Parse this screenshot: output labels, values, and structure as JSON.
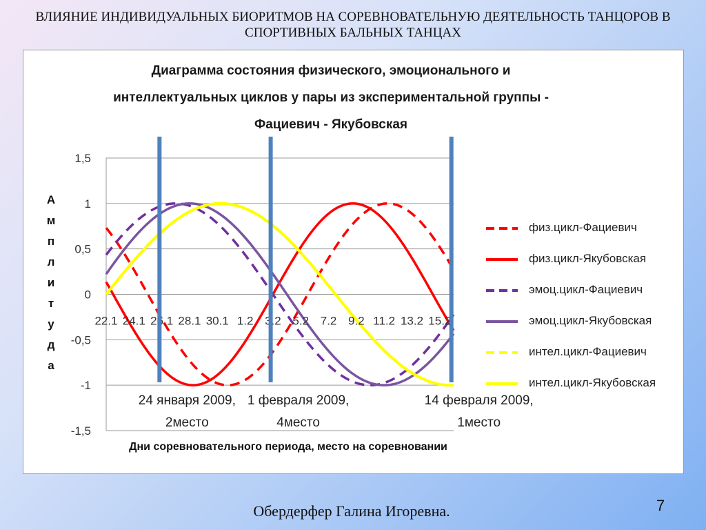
{
  "slide": {
    "title": "ВЛИЯНИЕ ИНДИВИДУАЛЬНЫХ БИОРИТМОВ НА СОРЕВНОВАТЕЛЬНУЮ ДЕЯТЕЛЬНОСТЬ ТАНЦОРОВ В СПОРТИВНЫХ БАЛЬНЫХ ТАНЦАХ",
    "footer": "Обердерфер Галина Игоревна.",
    "page_number": "7"
  },
  "chart_data": {
    "type": "line",
    "title_lines": [
      "Диаграмма состояния физического, эмоционального и",
      "интеллектуальных циклов у пары из экспериментальной группы -",
      "Фациевич - Якубовская"
    ],
    "xlabel": "Дни соревновательного периода, место на соревновании",
    "ylabel": "Амплитуда",
    "ylim": [
      -1.5,
      1.5
    ],
    "yticks": [
      "1,5",
      "1",
      "0,5",
      "0",
      "-0,5",
      "-1",
      "-1,5"
    ],
    "x_tick_labels": [
      "22.1",
      "24.1",
      "26.1",
      "28.1",
      "30.1",
      "1.2",
      "3.2",
      "5.2",
      "7.2",
      "9.2",
      "11.2",
      "13.2",
      "15.2"
    ],
    "x_day_range": [
      0,
      25
    ],
    "grid": true,
    "legend_position": "right",
    "markers": [
      {
        "day": 2,
        "label_line1": "24 января 2009,",
        "label_line2": "2место"
      },
      {
        "day": 10,
        "label_line1": "1 февраля 2009,",
        "label_line2": "4место"
      },
      {
        "day": 23,
        "label_line1": "14 февраля 2009,",
        "label_line2": "1место"
      }
    ],
    "series": [
      {
        "name": "физ.цикл-Фациевич",
        "color": "#ff0000",
        "dash": true,
        "period": 23,
        "peak_day": 20.25
      },
      {
        "name": "физ.цикл-Якубовская",
        "color": "#ff0000",
        "dash": false,
        "period": 23,
        "peak_day": 17.75
      },
      {
        "name": "эмоц.цикл-Фациевич",
        "color": "#7030a0",
        "dash": true,
        "period": 28,
        "peak_day": 5.0
      },
      {
        "name": "эмоц.цикл-Якубовская",
        "color": "#7a55a0",
        "dash": false,
        "period": 28,
        "peak_day": 6.0
      },
      {
        "name": "интел.цикл-Фациевич",
        "color": "#ffff00",
        "dash": true,
        "period": 33,
        "peak_day": 8.25
      },
      {
        "name": "интел.цикл-Якубовская",
        "color": "#ffff00",
        "dash": false,
        "period": 33,
        "peak_day": 8.25
      }
    ]
  }
}
